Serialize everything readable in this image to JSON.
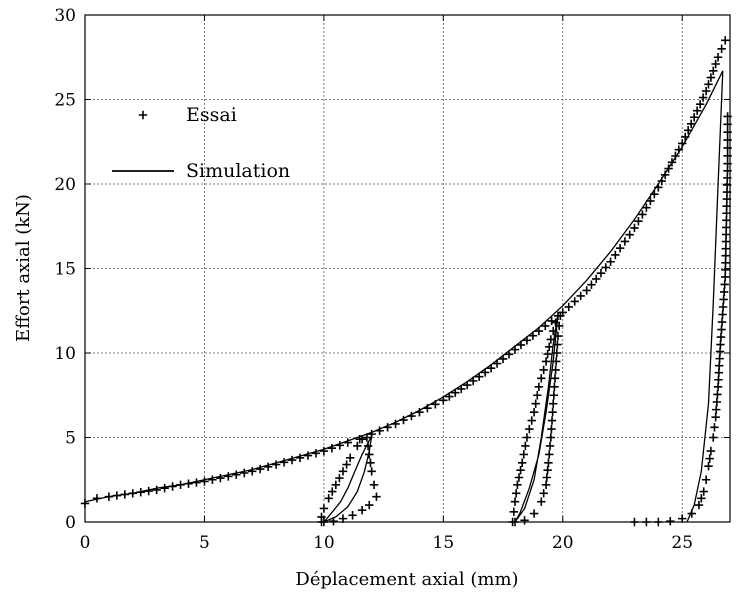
{
  "chart_data": {
    "type": "scatter",
    "xlabel": "Déplacement axial (mm)",
    "ylabel": "Effort axial (kN)",
    "xlim": [
      0,
      27
    ],
    "ylim": [
      0,
      30
    ],
    "xticks": [
      0,
      5,
      10,
      15,
      20,
      25
    ],
    "yticks": [
      0,
      5,
      10,
      15,
      20,
      25,
      30
    ],
    "grid": true,
    "legend_position": "top-left",
    "series": [
      {
        "name": "Essai",
        "style": "plus-marker",
        "color": "#000000",
        "segments": [
          [
            [
              0,
              1.1
            ],
            [
              0.5,
              1.4
            ],
            [
              1,
              1.5
            ],
            [
              2,
              1.7
            ],
            [
              3,
              1.9
            ],
            [
              4,
              2.2
            ],
            [
              5,
              2.4
            ],
            [
              6,
              2.7
            ],
            [
              7,
              3.0
            ],
            [
              8,
              3.4
            ],
            [
              9,
              3.8
            ],
            [
              10,
              4.2
            ],
            [
              11,
              4.7
            ],
            [
              11.5,
              4.9
            ],
            [
              12,
              5.2
            ],
            [
              13,
              5.8
            ],
            [
              14,
              6.5
            ],
            [
              15,
              7.2
            ],
            [
              16,
              8.1
            ],
            [
              17,
              9.1
            ],
            [
              18,
              10.2
            ],
            [
              19,
              11.3
            ],
            [
              19.8,
              12.2
            ],
            [
              20,
              12.4
            ],
            [
              21,
              13.7
            ],
            [
              22,
              15.4
            ],
            [
              23,
              17.4
            ],
            [
              24,
              19.8
            ],
            [
              25,
              22.4
            ],
            [
              26,
              25.5
            ],
            [
              26.5,
              27.5
            ],
            [
              26.8,
              28.5
            ]
          ],
          [
            [
              11.8,
              5.0
            ],
            [
              11.9,
              4.0
            ],
            [
              12.0,
              3.0
            ],
            [
              12.1,
              2.2
            ],
            [
              12.2,
              1.5
            ],
            [
              11.9,
              1.0
            ],
            [
              11.6,
              0.7
            ],
            [
              11.2,
              0.4
            ],
            [
              10.8,
              0.2
            ],
            [
              10.4,
              0.05
            ],
            [
              10.0,
              0.0
            ],
            [
              9.9,
              0.0
            ],
            [
              9.9,
              0.3
            ],
            [
              10.0,
              0.8
            ],
            [
              10.2,
              1.4
            ],
            [
              10.5,
              2.2
            ],
            [
              10.8,
              3.0
            ],
            [
              11.1,
              3.8
            ],
            [
              11.4,
              4.5
            ],
            [
              11.6,
              4.9
            ]
          ],
          [
            [
              19.9,
              12.2
            ],
            [
              19.8,
              11.0
            ],
            [
              19.7,
              9.0
            ],
            [
              19.6,
              7.0
            ],
            [
              19.5,
              5.0
            ],
            [
              19.4,
              3.5
            ],
            [
              19.3,
              2.2
            ],
            [
              19.1,
              1.2
            ],
            [
              18.8,
              0.5
            ],
            [
              18.4,
              0.1
            ],
            [
              18.0,
              0.0
            ],
            [
              17.9,
              0.0
            ],
            [
              18.0,
              1.2
            ],
            [
              18.1,
              2.2
            ],
            [
              18.3,
              3.5
            ],
            [
              18.5,
              5.0
            ],
            [
              18.8,
              6.5
            ],
            [
              19.0,
              8.0
            ],
            [
              19.3,
              9.5
            ],
            [
              19.5,
              10.8
            ],
            [
              19.7,
              11.8
            ]
          ],
          [
            [
              23.0,
              0.0
            ],
            [
              23.5,
              0.0
            ],
            [
              24.0,
              0.0
            ],
            [
              24.5,
              0.05
            ],
            [
              25.0,
              0.2
            ],
            [
              25.4,
              0.5
            ],
            [
              25.7,
              1.0
            ],
            [
              25.9,
              1.8
            ],
            [
              26.0,
              2.5
            ],
            [
              26.1,
              3.3
            ],
            [
              26.2,
              4.2
            ],
            [
              26.3,
              5.0
            ],
            [
              26.4,
              6.2
            ],
            [
              26.5,
              8.0
            ],
            [
              26.6,
              10.5
            ],
            [
              26.8,
              14.5
            ],
            [
              26.9,
              21.2
            ],
            [
              26.9,
              24.0
            ]
          ]
        ]
      },
      {
        "name": "Simulation",
        "style": "solid-line",
        "color": "#000000",
        "segments": [
          [
            [
              0,
              1.2
            ],
            [
              1,
              1.5
            ],
            [
              2,
              1.7
            ],
            [
              3,
              2.0
            ],
            [
              4,
              2.2
            ],
            [
              5,
              2.5
            ],
            [
              6,
              2.8
            ],
            [
              7,
              3.1
            ],
            [
              8,
              3.5
            ],
            [
              9,
              3.9
            ],
            [
              10,
              4.3
            ],
            [
              11,
              4.8
            ],
            [
              12,
              5.3
            ],
            [
              13,
              5.9
            ],
            [
              14,
              6.6
            ],
            [
              15,
              7.4
            ],
            [
              16,
              8.3
            ],
            [
              17,
              9.3
            ],
            [
              18,
              10.4
            ],
            [
              19,
              11.5
            ],
            [
              20,
              12.8
            ],
            [
              21,
              14.3
            ],
            [
              22,
              16.0
            ],
            [
              23,
              17.9
            ],
            [
              24,
              20.0
            ],
            [
              25,
              22.2
            ],
            [
              26,
              24.7
            ],
            [
              26.7,
              26.7
            ]
          ],
          [
            [
              12.0,
              5.1
            ],
            [
              11.6,
              4.0
            ],
            [
              11.3,
              3.0
            ],
            [
              11.0,
              2.0
            ],
            [
              10.7,
              1.2
            ],
            [
              10.3,
              0.5
            ],
            [
              10.0,
              0.0
            ],
            [
              10.5,
              0.3
            ],
            [
              11.0,
              0.9
            ],
            [
              11.4,
              1.8
            ],
            [
              11.7,
              3.0
            ],
            [
              11.9,
              4.2
            ],
            [
              12.0,
              5.1
            ]
          ],
          [
            [
              19.8,
              12.3
            ],
            [
              19.6,
              9.5
            ],
            [
              19.3,
              6.5
            ],
            [
              19.0,
              4.0
            ],
            [
              18.6,
              2.0
            ],
            [
              18.2,
              0.5
            ],
            [
              18.0,
              0.0
            ],
            [
              18.4,
              0.8
            ],
            [
              18.8,
              2.5
            ],
            [
              19.1,
              5.0
            ],
            [
              19.4,
              8.0
            ],
            [
              19.6,
              10.5
            ],
            [
              19.8,
              12.3
            ]
          ],
          [
            [
              26.7,
              26.7
            ],
            [
              26.5,
              20.0
            ],
            [
              26.3,
              13.0
            ],
            [
              26.1,
              7.0
            ],
            [
              25.8,
              3.0
            ],
            [
              25.5,
              1.0
            ],
            [
              25.2,
              0.0
            ]
          ]
        ]
      }
    ]
  }
}
